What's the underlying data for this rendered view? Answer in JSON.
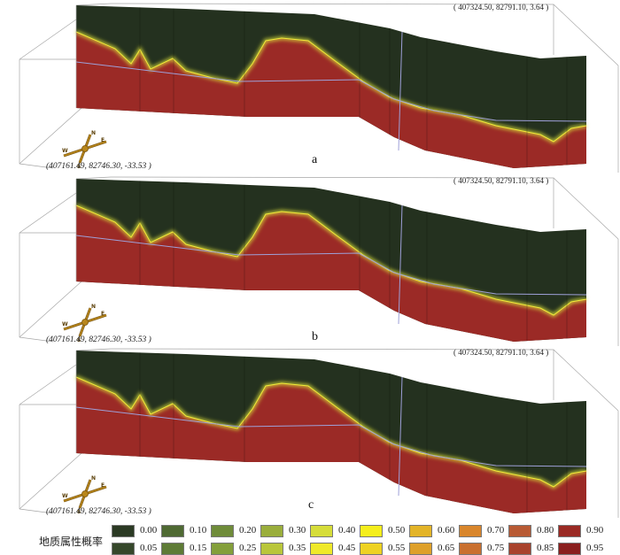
{
  "panels": [
    {
      "label": "a",
      "coord_top": "( 407324.50, 82791.10, 3.64 )",
      "coord_bottom": "(407161.49, 82746.30, -33.53 )"
    },
    {
      "label": "b",
      "coord_top": "( 407324.50, 82791.10, 3.64 )",
      "coord_bottom": "(407161.49, 82746.30, -33.53 )"
    },
    {
      "label": "c",
      "coord_top": "( 407324.50, 82791.10, 3.64 )",
      "coord_bottom": "(407161.49, 82746.30, -33.53 )"
    }
  ],
  "compass": {
    "north": "N",
    "south": "S",
    "east": "E",
    "west": "W"
  },
  "legend": {
    "title": "地质属性概率",
    "items": [
      {
        "label": "0.00",
        "color": "#2b3a24"
      },
      {
        "label": "0.10",
        "color": "#4f6a33"
      },
      {
        "label": "0.20",
        "color": "#6f8c3a"
      },
      {
        "label": "0.30",
        "color": "#9aae3c"
      },
      {
        "label": "0.40",
        "color": "#d6dd3a"
      },
      {
        "label": "0.50",
        "color": "#f5ee1c"
      },
      {
        "label": "0.60",
        "color": "#e3b428"
      },
      {
        "label": "0.70",
        "color": "#d9862c"
      },
      {
        "label": "0.80",
        "color": "#b85a34"
      },
      {
        "label": "0.90",
        "color": "#9a2a24"
      },
      {
        "label": "0.05",
        "color": "#35472a"
      },
      {
        "label": "0.15",
        "color": "#5e7b36"
      },
      {
        "label": "0.25",
        "color": "#849f3b"
      },
      {
        "label": "0.35",
        "color": "#b9c63b"
      },
      {
        "label": "0.45",
        "color": "#efe92a"
      },
      {
        "label": "0.55",
        "color": "#eed222"
      },
      {
        "label": "0.65",
        "color": "#dea02a"
      },
      {
        "label": "0.75",
        "color": "#c9702f"
      },
      {
        "label": "0.85",
        "color": "#a8422c"
      },
      {
        "label": "0.95",
        "color": "#8a1f1e"
      }
    ]
  }
}
